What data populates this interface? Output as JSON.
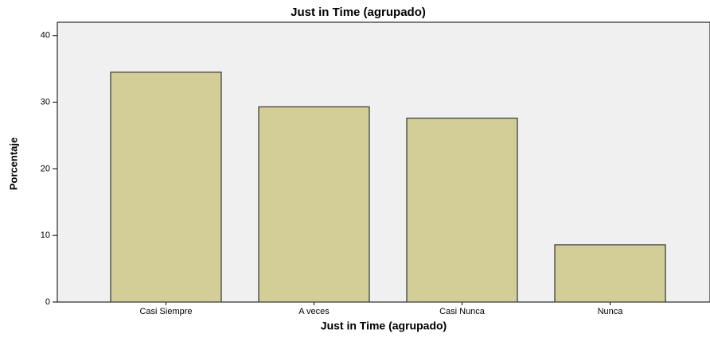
{
  "chart_data": {
    "type": "bar",
    "title": "Just in Time (agrupado)",
    "x_label": "Just in Time (agrupado)",
    "y_label": "Porcentaje",
    "categories": [
      "Casi Siempre",
      "A veces",
      "Casi Nunca",
      "Nunca"
    ],
    "values": [
      34.5,
      29.3,
      27.6,
      8.6
    ],
    "color": "#d3ce97",
    "ylim": [
      0,
      42
    ],
    "yticks": [
      0,
      10,
      20,
      30,
      40
    ],
    "grid": false
  }
}
